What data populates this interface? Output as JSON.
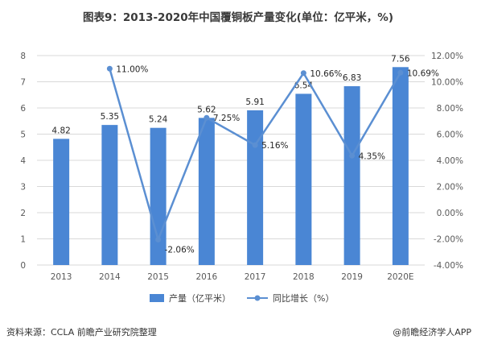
{
  "title": "图表9：2013-2020年中国覆铜板产量变化(单位：亿平米，%)",
  "source": "资料来源：CCLA 前瞻产业研究院整理",
  "credit": "@前瞻经济学人APP",
  "colors": {
    "bar": "#4a86d4",
    "line": "#5b8fd2",
    "grid": "#d9d9d9"
  },
  "chart_data": {
    "type": "bar",
    "categories": [
      "2013",
      "2014",
      "2015",
      "2016",
      "2017",
      "2018",
      "2019",
      "2020E"
    ],
    "series": [
      {
        "name": "产量（亿平米）",
        "type": "bar",
        "axis": "left",
        "values": [
          4.82,
          5.35,
          5.24,
          5.62,
          5.91,
          6.54,
          6.83,
          7.56
        ],
        "labels": [
          "4.82",
          "5.35",
          "5.24",
          "5.62",
          "5.91",
          "6.54",
          "6.83",
          "7.56"
        ]
      },
      {
        "name": "同比增长（%）",
        "type": "line",
        "axis": "right",
        "values": [
          null,
          11.0,
          -2.06,
          7.25,
          5.16,
          10.66,
          4.35,
          10.69
        ],
        "labels": [
          null,
          "11.00%",
          "-2.06%",
          "7.25%",
          "5.16%",
          "10.66%",
          "4.35%",
          "10.69%"
        ]
      }
    ],
    "ylim_left": [
      0,
      8
    ],
    "yticks_left": [
      "0",
      "1",
      "2",
      "3",
      "4",
      "5",
      "6",
      "7",
      "8"
    ],
    "ylim_right": [
      -4,
      12
    ],
    "yticks_right": [
      "-4.00%",
      "-2.00%",
      "0.00%",
      "2.00%",
      "4.00%",
      "6.00%",
      "8.00%",
      "10.00%",
      "12.00%"
    ],
    "grid": true,
    "legend": "bottom"
  }
}
